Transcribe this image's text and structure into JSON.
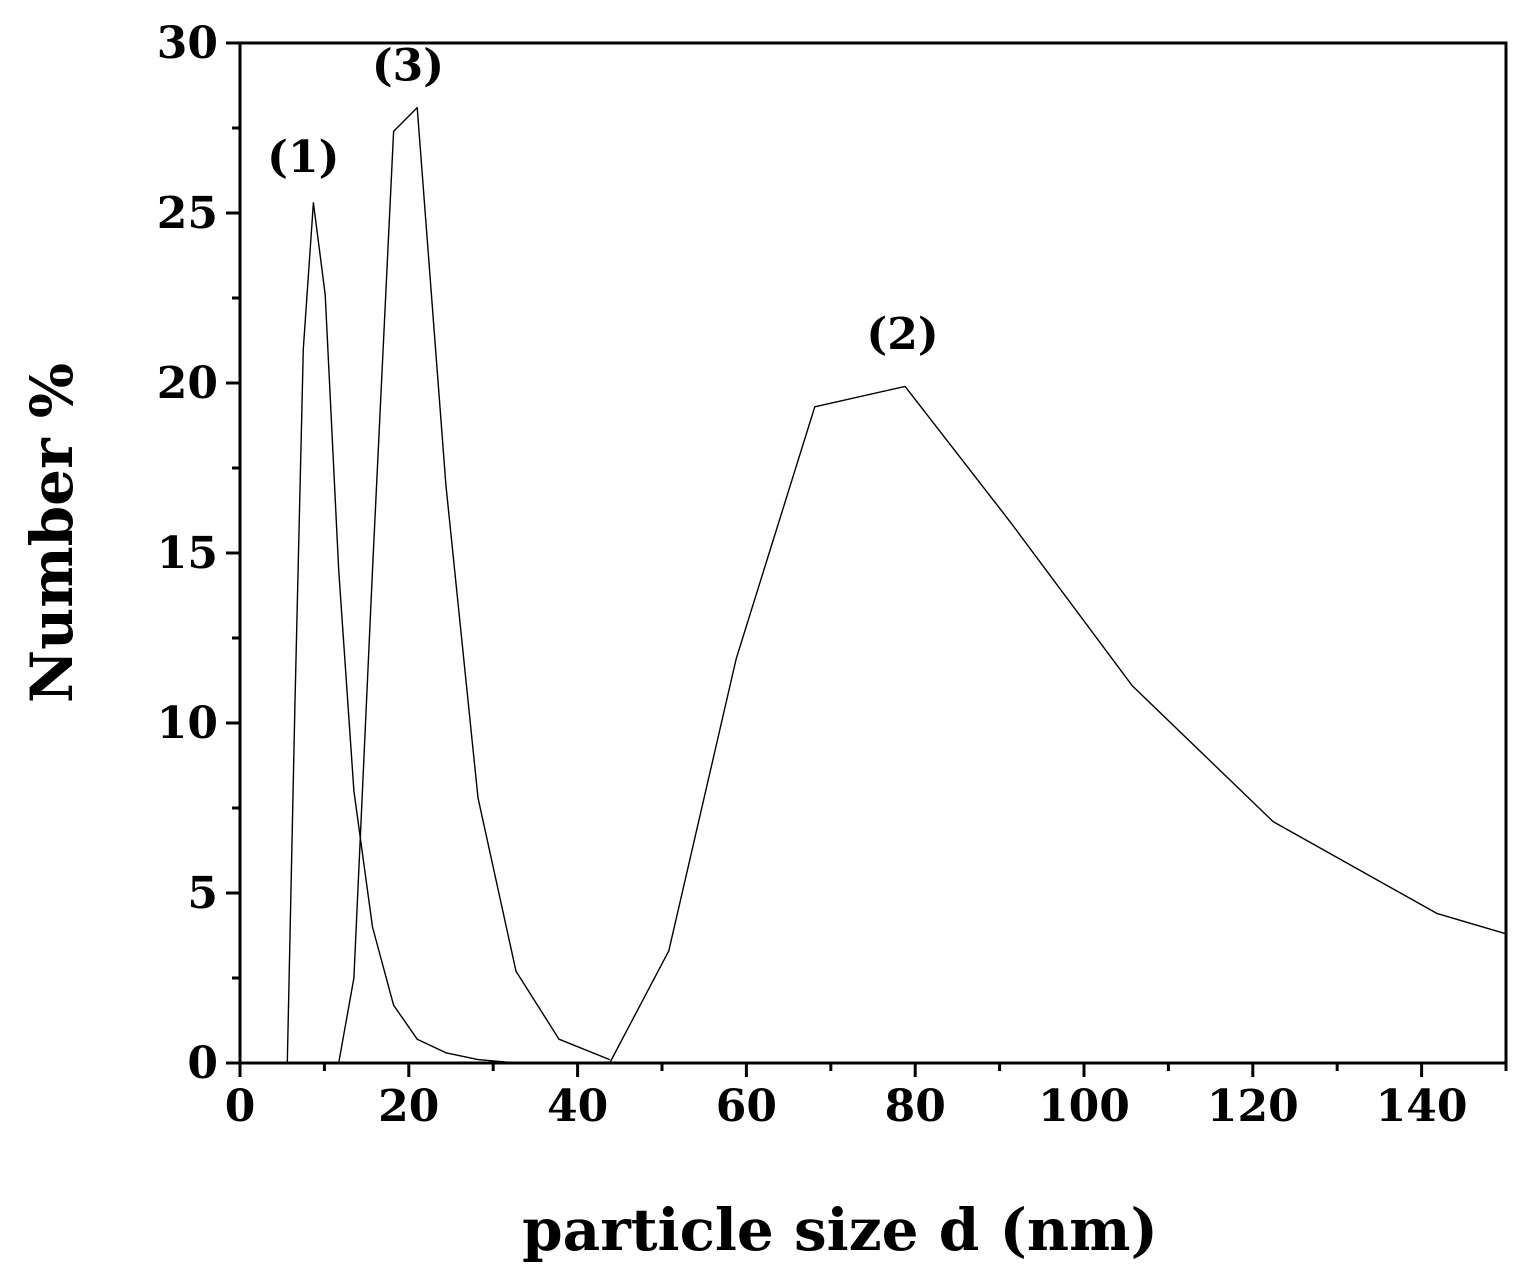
{
  "chart_data": {
    "type": "line",
    "xlabel": "particle size d (nm)",
    "ylabel": "Number %",
    "xlim": [
      0,
      150
    ],
    "ylim": [
      0,
      30
    ],
    "x_major_ticks": [
      0,
      20,
      40,
      60,
      80,
      100,
      120,
      140
    ],
    "y_major_ticks": [
      0,
      5,
      10,
      15,
      20,
      25,
      30
    ],
    "x_minor_step": 10,
    "y_minor_step": 2.5,
    "grid": false,
    "line_color": "#000000",
    "series": [
      {
        "label": "(1)",
        "x": [
          5.6,
          6.5,
          7.5,
          8.7,
          10.1,
          11.7,
          13.5,
          15.7,
          18.2,
          21.0,
          24.4,
          28.2,
          32.7,
          37.8,
          43.8
        ],
        "y": [
          0,
          10.5,
          21.0,
          25.3,
          22.6,
          14.5,
          8.0,
          4.0,
          1.7,
          0.7,
          0.3,
          0.1,
          0.0,
          0.0,
          0.0
        ]
      },
      {
        "label": "(3)",
        "x": [
          11.7,
          13.5,
          15.7,
          18.2,
          21.0,
          24.4,
          28.2,
          32.7,
          37.8,
          43.8
        ],
        "y": [
          0,
          2.5,
          14.5,
          27.4,
          28.1,
          17.0,
          7.8,
          2.7,
          0.7,
          0.1
        ]
      },
      {
        "label": "(2)",
        "x": [
          43.8,
          50.8,
          58.8,
          68.1,
          78.8,
          91.3,
          105.7,
          122.4,
          141.8,
          150.0
        ],
        "y": [
          0,
          3.3,
          11.9,
          19.3,
          19.9,
          15.9,
          11.1,
          7.1,
          4.4,
          3.8
        ]
      }
    ],
    "annotations": [
      {
        "text": "(1)",
        "x": 7.5,
        "y": 26.2
      },
      {
        "text": "(3)",
        "x": 19.9,
        "y": 28.9
      },
      {
        "text": "(2)",
        "x": 78.5,
        "y": 21.0
      }
    ]
  }
}
